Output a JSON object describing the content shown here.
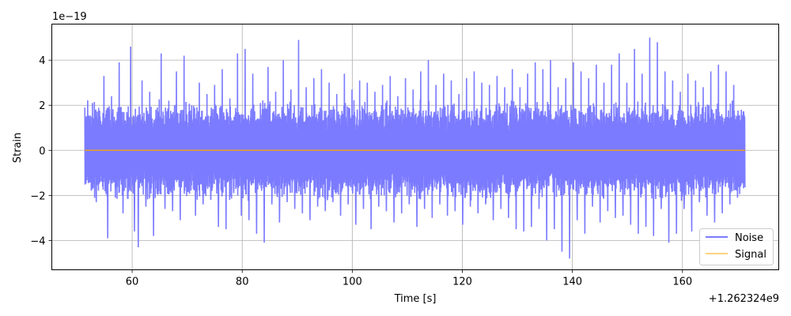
{
  "chart_data": {
    "type": "line",
    "title": "",
    "xlabel": "Time [s]",
    "ylabel": "Strain",
    "x_offset_label": "+1.262324e9",
    "y_scale_label": "1e−19",
    "xlim": [
      45.4,
      177.5
    ],
    "ylim": [
      -5.3,
      5.6
    ],
    "x_ticks": [
      60,
      80,
      100,
      120,
      140,
      160
    ],
    "y_ticks": [
      -4,
      -2,
      0,
      2,
      4
    ],
    "x_tick_labels": [
      "60",
      "80",
      "100",
      "120",
      "140",
      "160"
    ],
    "y_tick_labels": [
      "−4",
      "−2",
      "0",
      "2",
      "4"
    ],
    "grid": true,
    "legend_position": "lower-right",
    "series": [
      {
        "name": "Noise",
        "color": "#7b7bff",
        "x_range": [
          51.4,
          171.4
        ],
        "values": [
          1.9,
          -1.2,
          2.1,
          -2.3,
          1.5,
          3.3,
          -3.9,
          2.4,
          -2.1,
          3.9,
          -2.8,
          1.7,
          4.6,
          -3.6,
          -4.3,
          3.1,
          -2.5,
          2.6,
          -3.8,
          1.9,
          4.3,
          -2.6,
          2.2,
          -2.7,
          3.5,
          -3.1,
          4.2,
          -1.8,
          2.0,
          -2.9,
          3.0,
          -2.4,
          2.5,
          -2.2,
          2.9,
          -3.4,
          3.6,
          -3.5,
          2.3,
          -1.9,
          4.3,
          -2.9,
          4.5,
          -3.1,
          3.4,
          -3.7,
          2.1,
          -4.1,
          3.7,
          -2.4,
          2.6,
          -3.2,
          4.0,
          -2.3,
          2.7,
          -2.6,
          4.9,
          -2.8,
          2.8,
          -3.1,
          3.2,
          -2.5,
          3.6,
          -2.7,
          3.0,
          -2.3,
          2.5,
          -2.9,
          3.4,
          -2.4,
          2.7,
          -3.3,
          3.1,
          -2.6,
          3.0,
          -3.5,
          2.6,
          -2.5,
          2.9,
          -2.7,
          3.3,
          -3.2,
          2.4,
          -2.8,
          3.2,
          -2.4,
          2.7,
          -3.4,
          3.5,
          -2.6,
          4.0,
          -3.0,
          2.9,
          -2.4,
          3.4,
          -2.9,
          3.1,
          -2.7,
          2.5,
          -3.3,
          3.2,
          -2.5,
          3.5,
          -2.8,
          3.0,
          -2.4,
          2.9,
          -3.1,
          3.3,
          -2.6,
          2.8,
          -3.0,
          3.6,
          -3.5,
          2.8,
          -3.6,
          3.4,
          -3.4,
          3.9,
          -2.6,
          3.6,
          -4.0,
          4.0,
          -3.5,
          2.8,
          -4.5,
          3.2,
          -4.8,
          3.9,
          -3.1,
          3.5,
          -3.7,
          3.2,
          -2.5,
          3.8,
          -3.2,
          3.0,
          -2.7,
          3.8,
          -3.0,
          4.3,
          -2.9,
          3.0,
          -3.3,
          4.5,
          -3.7,
          3.4,
          -3.4,
          5.0,
          -3.8,
          4.8,
          -2.6,
          3.5,
          -4.1,
          3.1,
          -3.7,
          2.6,
          -2.6,
          3.4,
          -3.6,
          3.1,
          -2.3,
          2.8,
          -2.9,
          3.5,
          -3.2,
          3.8,
          -2.8,
          3.5,
          -2.4,
          2.9,
          -2.1,
          1.8,
          -1.6
        ]
      },
      {
        "name": "Signal",
        "color": "#ffa500",
        "x": [
          51.4,
          171.4
        ],
        "values": [
          0,
          0
        ]
      }
    ]
  }
}
